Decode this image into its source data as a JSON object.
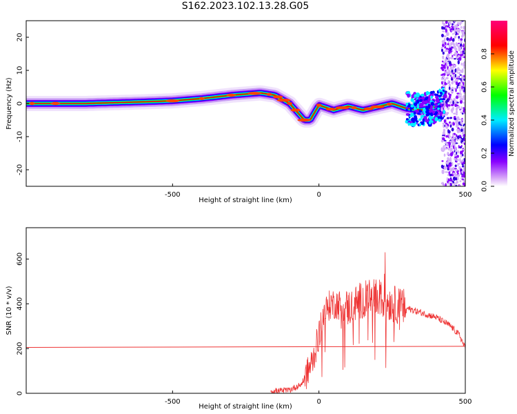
{
  "title": "S162.2023.102.13.28.G05",
  "colors": {
    "snr_line": "#ee3333",
    "axis": "#000000",
    "background": "#ffffff"
  },
  "chart_data": [
    {
      "type": "heatmap",
      "xlabel": "Height of straight line (km)",
      "ylabel": "Frequency (Hz)",
      "xlim": [
        -1000,
        500
      ],
      "ylim": [
        -25,
        25
      ],
      "x_ticks": [
        -500,
        0,
        500
      ],
      "y_ticks": [
        -20,
        -10,
        0,
        10,
        20
      ],
      "colorbar": {
        "label": "Normalized spectral amplitude",
        "range": [
          0.0,
          1.0
        ],
        "ticks": [
          0.0,
          0.2,
          0.4,
          0.6,
          0.8
        ],
        "colormap": [
          "#ffffff",
          "#d8a8f8",
          "#8800ff",
          "#0000ff",
          "#00eeff",
          "#00ff00",
          "#ffff00",
          "#ff0000",
          "#ff0077"
        ]
      },
      "ridge": {
        "x": [
          -1000,
          -800,
          -600,
          -500,
          -400,
          -300,
          -200,
          -150,
          -100,
          -50,
          -30,
          0,
          50,
          100,
          150,
          200,
          250,
          300,
          350,
          400,
          420
        ],
        "y": [
          0,
          0,
          0.5,
          0.8,
          1.5,
          2.5,
          3.2,
          2.5,
          0,
          -5,
          -5,
          -0.5,
          -2,
          -0.8,
          -2,
          -1,
          0,
          -1.5,
          -2,
          -1,
          0
        ]
      }
    },
    {
      "type": "line",
      "xlabel": "Height of straight line (km)",
      "ylabel": "SNR (10 * v/v)",
      "xlim": [
        -1000,
        500
      ],
      "ylim": [
        0,
        740
      ],
      "x_ticks": [
        -500,
        0,
        500
      ],
      "y_ticks": [
        0,
        200,
        400,
        600
      ],
      "threshold": {
        "x": [
          -1000,
          500
        ],
        "y": [
          205,
          210
        ]
      },
      "envelope": {
        "x": [
          -165,
          -140,
          -100,
          -60,
          -40,
          -20,
          0,
          10,
          20,
          40,
          60,
          80,
          100,
          150,
          200,
          250,
          300,
          350,
          400,
          450,
          480,
          500
        ],
        "y": [
          10,
          10,
          15,
          40,
          90,
          150,
          260,
          330,
          360,
          400,
          400,
          390,
          380,
          420,
          430,
          400,
          380,
          360,
          340,
          300,
          260,
          200
        ]
      }
    }
  ]
}
